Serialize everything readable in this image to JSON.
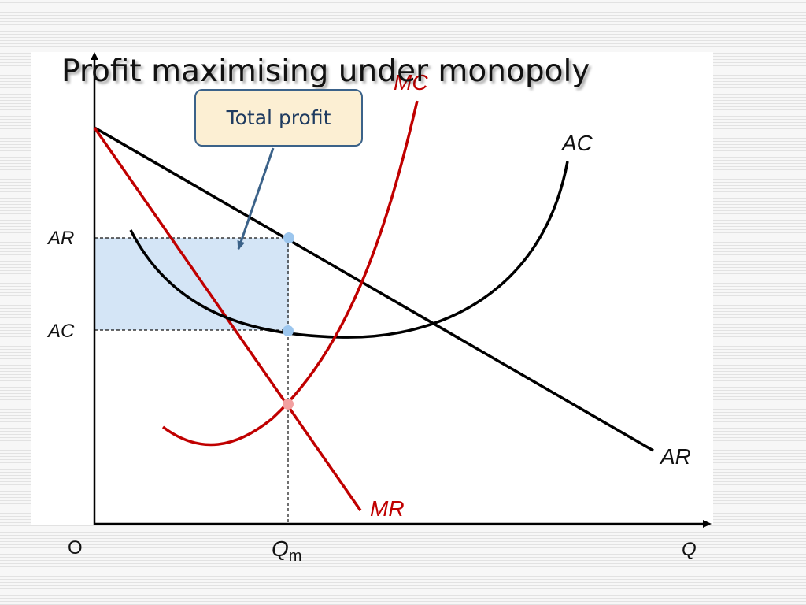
{
  "slide": {
    "title": "Profit maximising under monopoly"
  },
  "callout": {
    "text": "Total profit",
    "border_color": "#3b6289",
    "fill_color": "#fcefd3"
  },
  "curves": {
    "mc_label": "MC",
    "ac_label": "AC",
    "ar_label": "AR",
    "mr_label": "MR"
  },
  "axes": {
    "y_tick_ar": "AR",
    "y_tick_ac": "AC",
    "origin": "O",
    "x_label": "Q",
    "x_tick_q": "Q",
    "x_tick_sub": "m"
  },
  "colors": {
    "mc": "#c00000",
    "mr": "#c00000",
    "ac": "#000000",
    "ar": "#000000",
    "profit_area": "#cfe2f5",
    "point": "#9cc6ee",
    "mc_mr_point": "#f2a0a0"
  }
}
